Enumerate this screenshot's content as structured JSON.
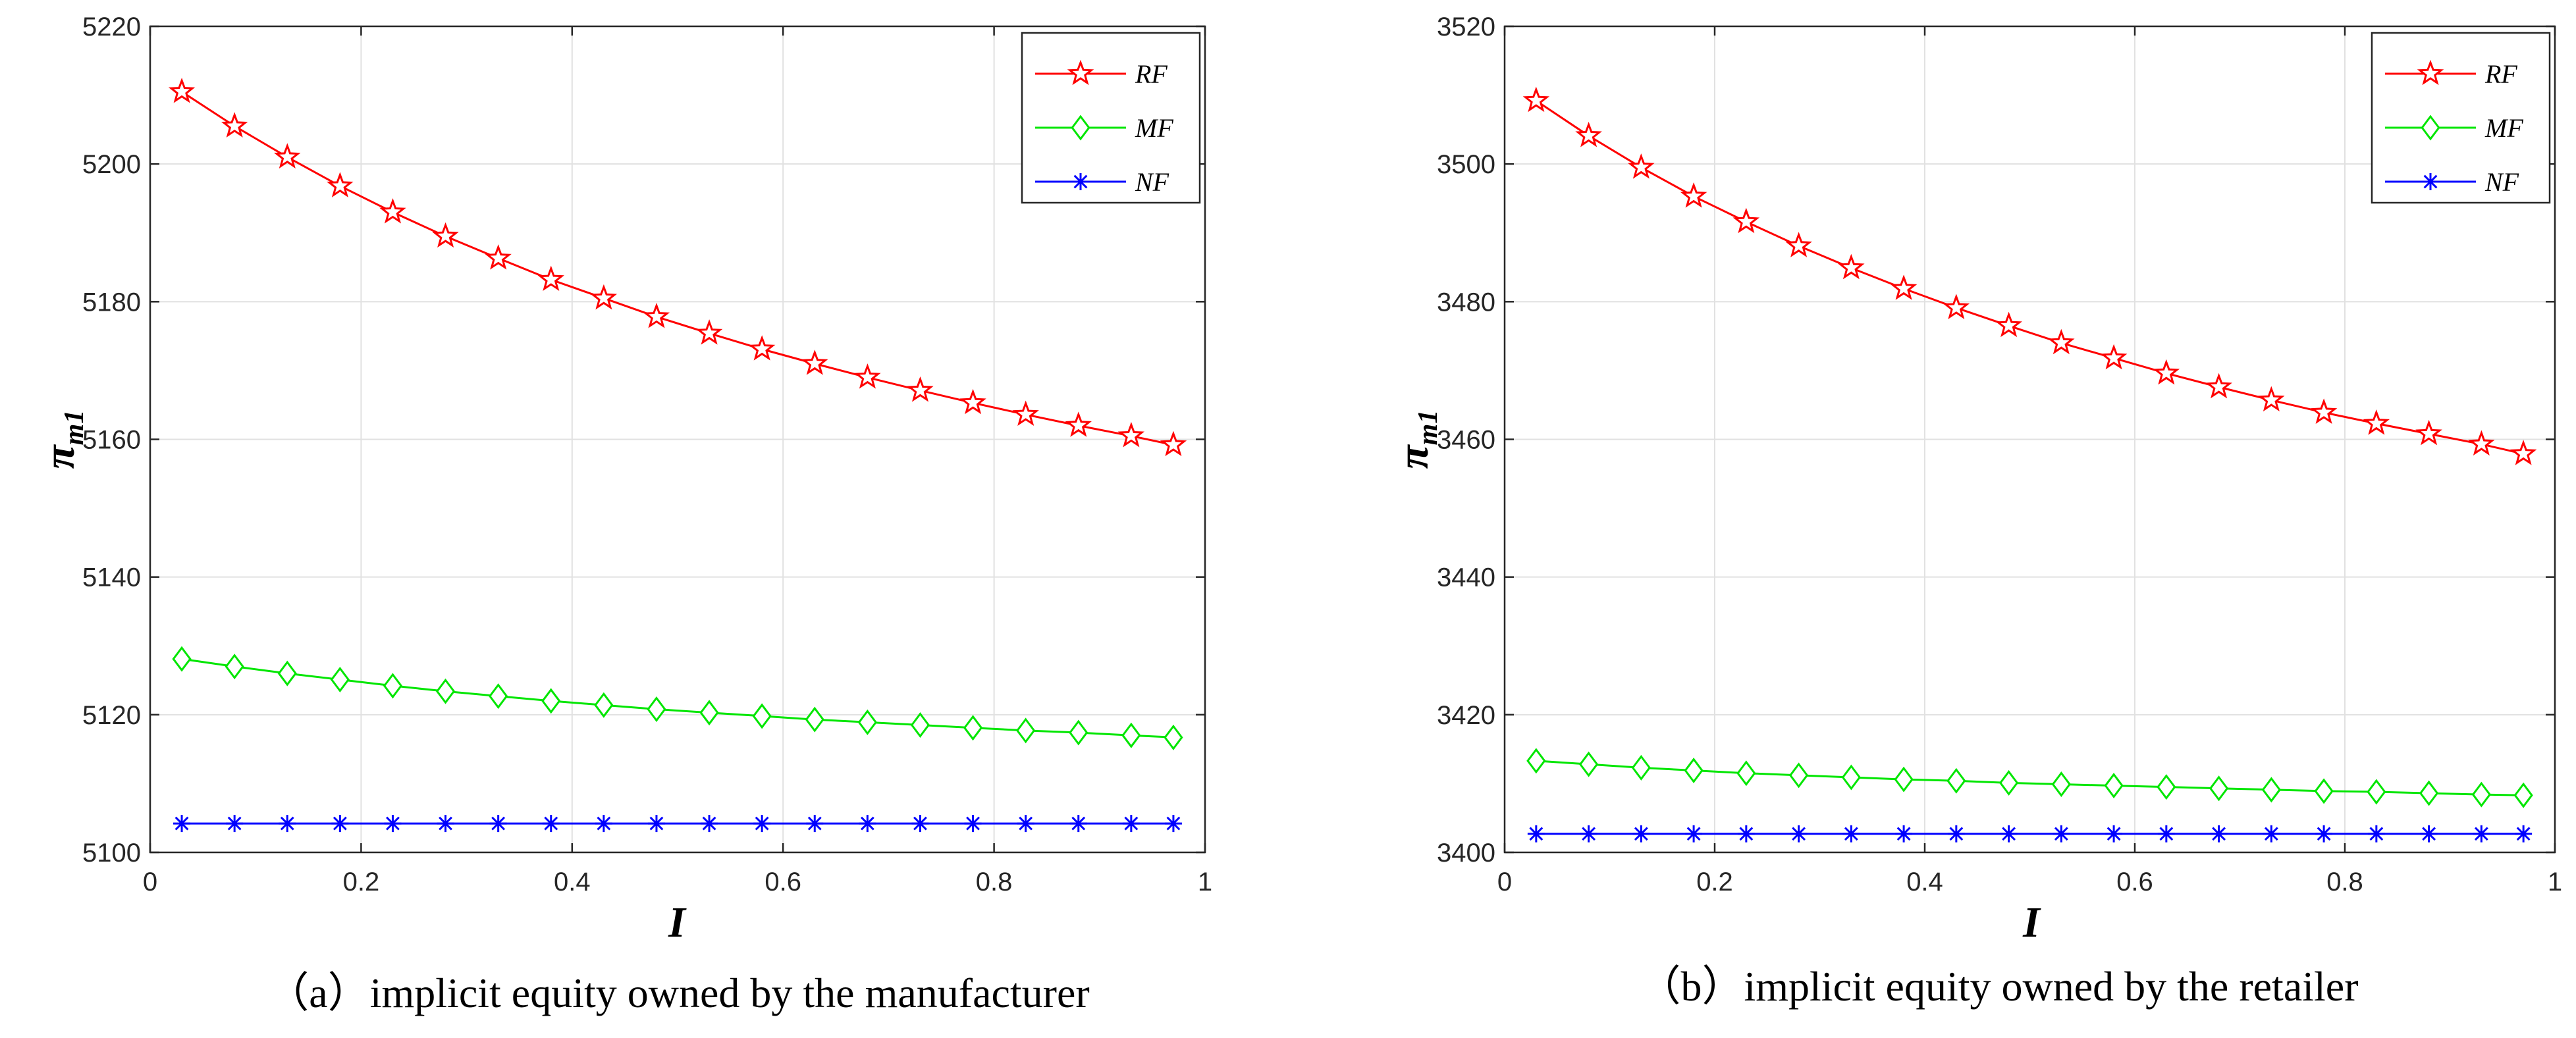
{
  "chart_data": [
    {
      "type": "line",
      "caption": "（a）implicit equity owned by the manufacturer",
      "xlabel": "I",
      "ylabel": "π",
      "ylabel_sub": "m1",
      "xlim": [
        0,
        1
      ],
      "ylim": [
        5100,
        5220
      ],
      "xticks": [
        "0",
        "0.2",
        "0.4",
        "0.6",
        "0.8",
        "1"
      ],
      "yticks": [
        "5100",
        "5120",
        "5140",
        "5160",
        "5180",
        "5200",
        "5220"
      ],
      "grid": true,
      "legend_position": "top-right",
      "x": [
        0.03,
        0.08,
        0.13,
        0.18,
        0.23,
        0.28,
        0.33,
        0.38,
        0.43,
        0.48,
        0.53,
        0.58,
        0.63,
        0.68,
        0.73,
        0.78,
        0.83,
        0.88,
        0.93,
        0.97
      ],
      "series": [
        {
          "name": "RF",
          "color": "#ff0000",
          "marker": "pentagram",
          "values": [
            5210.5,
            5205.5,
            5201.0,
            5196.8,
            5193.0,
            5189.5,
            5186.3,
            5183.2,
            5180.5,
            5177.8,
            5175.4,
            5173.1,
            5171.0,
            5169.0,
            5167.1,
            5165.3,
            5163.6,
            5162.0,
            5160.5,
            5159.2
          ]
        },
        {
          "name": "MF",
          "color": "#00e600",
          "marker": "diamond",
          "values": [
            5128.1,
            5127.0,
            5126.0,
            5125.1,
            5124.2,
            5123.4,
            5122.7,
            5122.0,
            5121.4,
            5120.8,
            5120.3,
            5119.8,
            5119.3,
            5118.9,
            5118.5,
            5118.1,
            5117.7,
            5117.4,
            5117.0,
            5116.7
          ]
        },
        {
          "name": "NF",
          "color": "#0000ff",
          "marker": "asterisk",
          "values": [
            5104.2,
            5104.2,
            5104.2,
            5104.2,
            5104.2,
            5104.2,
            5104.2,
            5104.2,
            5104.2,
            5104.2,
            5104.2,
            5104.2,
            5104.2,
            5104.2,
            5104.2,
            5104.2,
            5104.2,
            5104.2,
            5104.2,
            5104.2
          ]
        }
      ]
    },
    {
      "type": "line",
      "caption": "（b）implicit equity owned by the retailer",
      "xlabel": "I",
      "ylabel": "π",
      "ylabel_sub": "m1",
      "xlim": [
        0,
        1
      ],
      "ylim": [
        3400,
        3520
      ],
      "xticks": [
        "0",
        "0.2",
        "0.4",
        "0.6",
        "0.8",
        "1"
      ],
      "yticks": [
        "3400",
        "3420",
        "3440",
        "3460",
        "3480",
        "3500",
        "3520"
      ],
      "grid": true,
      "legend_position": "top-right",
      "x": [
        0.03,
        0.08,
        0.13,
        0.18,
        0.23,
        0.28,
        0.33,
        0.38,
        0.43,
        0.48,
        0.53,
        0.58,
        0.63,
        0.68,
        0.73,
        0.78,
        0.83,
        0.88,
        0.93,
        0.97
      ],
      "series": [
        {
          "name": "RF",
          "color": "#ff0000",
          "marker": "pentagram",
          "values": [
            3509.2,
            3504.1,
            3499.5,
            3495.3,
            3491.6,
            3488.1,
            3484.9,
            3481.9,
            3479.1,
            3476.5,
            3474.0,
            3471.8,
            3469.6,
            3467.6,
            3465.7,
            3463.9,
            3462.3,
            3460.8,
            3459.3,
            3457.9
          ]
        },
        {
          "name": "MF",
          "color": "#00e600",
          "marker": "diamond",
          "values": [
            3413.3,
            3412.8,
            3412.3,
            3411.9,
            3411.5,
            3411.2,
            3410.9,
            3410.6,
            3410.4,
            3410.1,
            3409.9,
            3409.7,
            3409.5,
            3409.3,
            3409.1,
            3408.9,
            3408.8,
            3408.6,
            3408.4,
            3408.3
          ]
        },
        {
          "name": "NF",
          "color": "#0000ff",
          "marker": "asterisk",
          "values": [
            3402.7,
            3402.7,
            3402.7,
            3402.7,
            3402.7,
            3402.7,
            3402.7,
            3402.7,
            3402.7,
            3402.7,
            3402.7,
            3402.7,
            3402.7,
            3402.7,
            3402.7,
            3402.7,
            3402.7,
            3402.7,
            3402.7,
            3402.7
          ]
        }
      ]
    }
  ]
}
